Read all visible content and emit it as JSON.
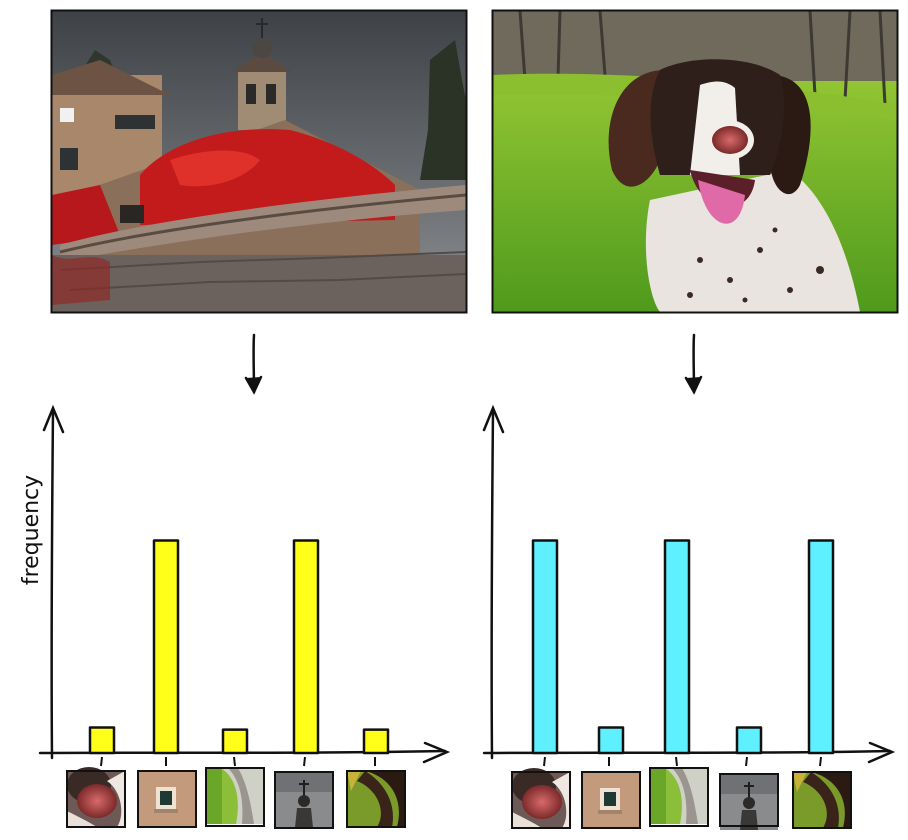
{
  "ylabel": "frequency",
  "images": [
    {
      "subject": "church-with-red-ivy",
      "caption": ""
    },
    {
      "subject": "spaniel-dog-on-grass",
      "caption": ""
    }
  ],
  "patch_icons": [
    "dog-nose-patch-icon",
    "window-patch-icon",
    "dog-fur-patch-icon",
    "steeple-patch-icon",
    "dog-ear-patch-icon"
  ],
  "colors": {
    "left_bars": "#ffff1a",
    "right_bars": "#5ef0ff",
    "stroke": "#111111"
  },
  "chart_data": [
    {
      "type": "bar",
      "title": "",
      "xlabel": "",
      "ylabel": "frequency",
      "categories": [
        "",
        "",
        "",
        "",
        ""
      ],
      "values": [
        0.12,
        1.0,
        0.11,
        1.0,
        0.11
      ],
      "ylim": [
        0,
        1.6
      ]
    },
    {
      "type": "bar",
      "title": "",
      "xlabel": "",
      "ylabel": "",
      "categories": [
        "",
        "",
        "",
        "",
        ""
      ],
      "values": [
        1.0,
        0.12,
        1.0,
        0.12,
        1.0
      ],
      "ylim": [
        0,
        1.6
      ]
    }
  ]
}
